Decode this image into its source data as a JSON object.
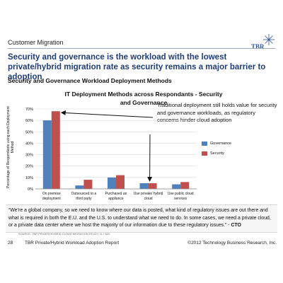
{
  "section_label": "Customer Migration",
  "logo_text": "TBR",
  "headline": "Security and governance is the workload with the lowest private/hybrid migration rate as security remains a major barrier to adoption",
  "subhead": "Security and Governance Workload Deployment Methods",
  "callout": "Traditional deployment still holds value for security and governance workloads, as regulatory concerns hinder cloud adoption",
  "quote": {
    "text": "“We’re a global company, so we need to know where our data is posted, what kind of regulatory issues are out there and what is required in both the E.U. and the U.S. to understand what we need to do. In some cases, we need a private cloud, or a private data center where we host the majority of our information due to these regulatory issues.” -",
    "attribution": "CTO"
  },
  "source": "SOURCE: TBR PRIVATE/HYBRID CLOUD MIGRATION STUDY, N = 620",
  "footer": {
    "page": "28",
    "report": "TBR Private/Hybrid Workload Adoption Report",
    "copyright": "©2012 Technology Business Research, Inc."
  },
  "colors": {
    "governance": "#4f81bd",
    "security": "#c0504d",
    "headline": "#1f3d7a",
    "grid": "#d9d9d9",
    "arrow": "#111111"
  },
  "chart_data": {
    "type": "bar",
    "title": "IT Deployment Methods across Respondants - Security and Governance",
    "ylabel": "Percentage of Respondants using each Deployment Method",
    "xlabel": "",
    "categories": [
      "On premise deployment",
      "Outsourced to a third party",
      "Purchased an appliance",
      "Use private/ hybrid cloud",
      "Use public cloud services"
    ],
    "category_lines": [
      [
        "On premise",
        "deployment"
      ],
      [
        "Outsourced to a",
        "third party"
      ],
      [
        "Purchased an",
        "appliance"
      ],
      [
        "Use private/ hybrid",
        "cloud"
      ],
      [
        "Use public cloud",
        "services"
      ]
    ],
    "series": [
      {
        "name": "Governance",
        "values": [
          60,
          3,
          10,
          5,
          4
        ]
      },
      {
        "name": "Security",
        "values": [
          68,
          8,
          12,
          5,
          6
        ]
      }
    ],
    "ylim": [
      0,
      70
    ],
    "yticks": [
      0,
      10,
      20,
      30,
      40,
      50,
      60,
      70
    ],
    "ytick_format": "percent",
    "grid": true,
    "legend": "right",
    "annotations": [
      {
        "text": "Traditional deployment still holds value for security and governance workloads, as regulatory concerns hinder cloud adoption",
        "points_to": [
          "On premise deployment",
          "Use private/ hybrid cloud"
        ]
      }
    ]
  }
}
